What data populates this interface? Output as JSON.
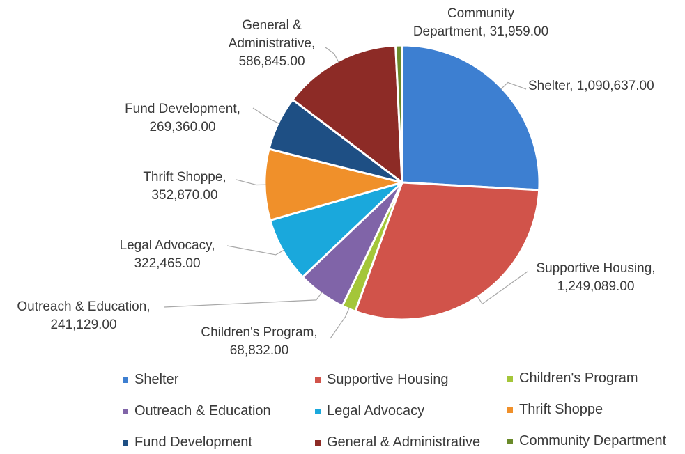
{
  "chart_data": {
    "type": "pie",
    "title": "",
    "slices": [
      {
        "name": "Shelter",
        "value": 1090637.0,
        "label": "Shelter, 1,090,637.00",
        "color": "#3d7fd1"
      },
      {
        "name": "Supportive Housing",
        "value": 1249089.0,
        "label": "Supportive Housing, 1,249,089.00",
        "color": "#d1534a"
      },
      {
        "name": "Children's Program",
        "value": 68832.0,
        "label": "Children's Program, 68,832.00",
        "color": "#a4c639"
      },
      {
        "name": "Outreach & Education",
        "value": 241129.0,
        "label": "Outreach & Education, 241,129.00",
        "color": "#8064a8"
      },
      {
        "name": "Legal Advocacy",
        "value": 322465.0,
        "label": "Legal Advocacy, 322,465.00",
        "color": "#1aa8dc"
      },
      {
        "name": "Thrift Shoppe",
        "value": 352870.0,
        "label": "Thrift Shoppe, 352,870.00",
        "color": "#f0902a"
      },
      {
        "name": "Fund Development",
        "value": 269360.0,
        "label": "Fund Development, 269,360.00",
        "color": "#1e4f84"
      },
      {
        "name": "General & Administrative",
        "value": 586845.0,
        "label": "General & Administrative, 586,845.00",
        "color": "#8d2b26"
      },
      {
        "name": "Community Department",
        "value": 31959.0,
        "label": "Community Department, 31,959.00",
        "color": "#6a8a2a"
      }
    ],
    "legend_position": "bottom",
    "data_labels": "category-and-value-outside-with-leader-lines"
  }
}
